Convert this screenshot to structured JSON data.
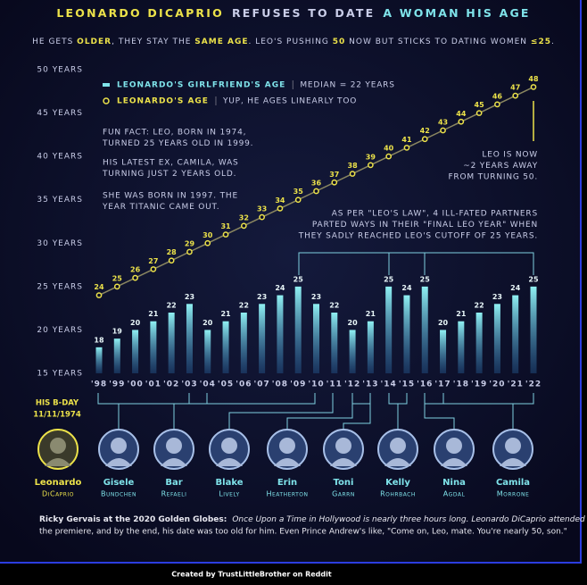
{
  "chart_data": {
    "type": "bar",
    "title_parts": [
      "LEONARDO DICAPRIO",
      "REFUSES TO DATE",
      "A WOMAN HIS AGE"
    ],
    "subtitle_parts": [
      "HE GETS ",
      "OLDER",
      ", THEY STAY THE ",
      "SAME AGE",
      ". LEO'S PUSHING ",
      "50",
      " NOW BUT STICKS TO DATING WOMEN ",
      "≤25",
      "."
    ],
    "categories": [
      "'98",
      "'99",
      "'00",
      "'01",
      "'02",
      "'03",
      "'04",
      "'05",
      "'06",
      "'07",
      "'08",
      "'09",
      "'10",
      "'11",
      "'12",
      "'13",
      "'14",
      "'15",
      "'16",
      "'17",
      "'18",
      "'19",
      "'20",
      "'21",
      "'22"
    ],
    "series": [
      {
        "name": "LEONARDO'S GIRLFRIEND'S AGE",
        "note": "MEDIAN = 22 YEARS",
        "color": "#7fe3ea",
        "type": "bar",
        "values": [
          18,
          19,
          20,
          21,
          22,
          23,
          20,
          21,
          22,
          23,
          24,
          25,
          23,
          22,
          20,
          21,
          25,
          24,
          25,
          20,
          21,
          22,
          23,
          24,
          25
        ]
      },
      {
        "name": "LEONARDO'S AGE",
        "note": "YUP, HE AGES LINEARLY TOO",
        "color": "#ece24a",
        "type": "line",
        "values": [
          24,
          25,
          26,
          27,
          28,
          29,
          30,
          31,
          32,
          33,
          34,
          35,
          36,
          37,
          38,
          39,
          40,
          41,
          42,
          43,
          44,
          45,
          46,
          47,
          48
        ]
      }
    ],
    "ylim": [
      15,
      50
    ],
    "yticks": [
      {
        "value": 15,
        "label": "15 YEARS"
      },
      {
        "value": 20,
        "label": "20 YEARS"
      },
      {
        "value": 25,
        "label": "25 YEARS"
      },
      {
        "value": 30,
        "label": "30 YEARS"
      },
      {
        "value": 35,
        "label": "35 YEARS"
      },
      {
        "value": 40,
        "label": "40 YEARS"
      },
      {
        "value": 45,
        "label": "45 YEARS"
      },
      {
        "value": 50,
        "label": "50 YEARS"
      }
    ],
    "grid": false,
    "annotations": [
      [
        "FUN FACT: LEO, BORN IN 1974,",
        "TURNED 25 YEARS OLD IN 1999."
      ],
      [
        "HIS LATEST EX, CAMILA, WAS",
        "TURNING JUST 2 YEARS OLD."
      ],
      [
        "SHE WAS BORN IN 1997. THE",
        "YEAR TITANIC CAME OUT."
      ],
      [
        "LEO IS NOW",
        "~2 YEARS AWAY",
        "FROM TURNING 50."
      ],
      [
        "AS PER \"LEO'S LAW\", 4 ILL-FATED PARTNERS",
        "PARTED WAYS IN THEIR \"FINAL LEO YEAR\" WHEN",
        "THEY SADLY REACHED LEO'S CUTOFF OF 25 YEARS."
      ]
    ],
    "birthday": [
      "HIS B-DAY",
      "11/11/1974"
    ],
    "people": [
      {
        "first": "Leonardo",
        "last": "DiCaprio"
      },
      {
        "first": "Gisele",
        "last": "Bundchen"
      },
      {
        "first": "Bar",
        "last": "Refaeli"
      },
      {
        "first": "Blake",
        "last": "Lively"
      },
      {
        "first": "Erin",
        "last": "Heatherton"
      },
      {
        "first": "Toni",
        "last": "Garrn"
      },
      {
        "first": "Kelly",
        "last": "Rohrbach"
      },
      {
        "first": "Nina",
        "last": "Agdal"
      },
      {
        "first": "Camila",
        "last": "Morrone"
      }
    ],
    "quote_lead": "Ricky Gervais at the 2020 Golden Globes:",
    "quote_lines": [
      "Once Upon a Time in Hollywood is nearly three hours long. Leonardo DiCaprio attended",
      "the premiere, and by the end, his date was too old for him.  Even Prince Andrew's like, \"Come on, Leo, mate. You're nearly 50, son.\""
    ],
    "credit": "Created by TrustLittleBrother on Reddit"
  }
}
